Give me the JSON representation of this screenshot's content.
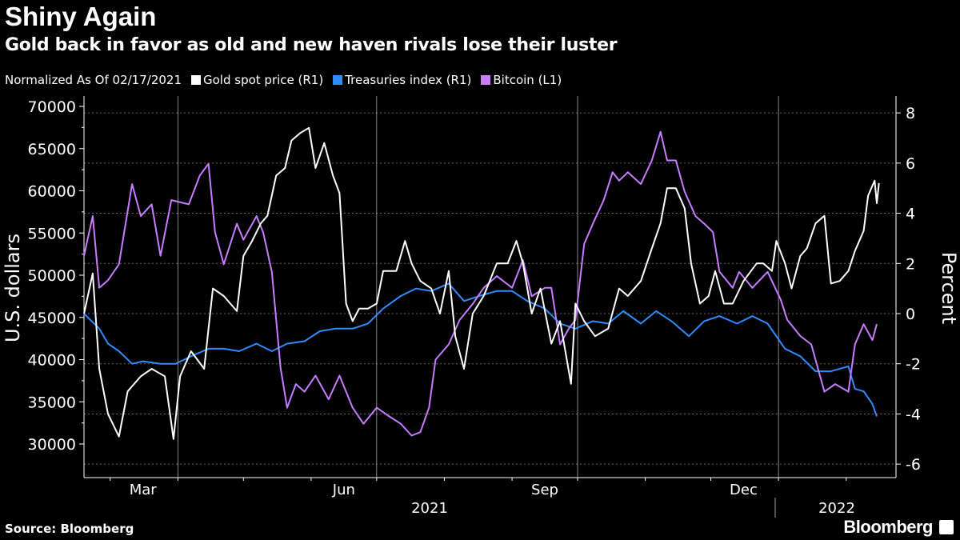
{
  "chart_data": {
    "type": "line",
    "title": "Shiny Again",
    "subtitle": "Gold back in favor as old and new haven rivals lose their luster",
    "note": "Normalized As Of 02/17/2021",
    "x_unit": "days since 2021-02-17",
    "x_tick_labels": [
      "Mar",
      "Jun",
      "Sep",
      "Dec"
    ],
    "year_labels": [
      "2021",
      "2022"
    ],
    "ylabel_left": "U.S. dollars",
    "ylabel_right": "Percent",
    "ylim_left": [
      28000,
      71000
    ],
    "ylim_right": [
      -6.5,
      8.5
    ],
    "left_ticks": [
      "70000",
      "65000",
      "60000",
      "55000",
      "50000",
      "45000",
      "40000",
      "35000",
      "30000"
    ],
    "right_ticks": [
      "8",
      "6",
      "4",
      "2",
      "0",
      "-2",
      "-4",
      "-6"
    ],
    "grid": true,
    "series": [
      {
        "name": "Gold spot price (R1)",
        "axis": "right",
        "color": "#ffffff",
        "points": [
          [
            0,
            0
          ],
          [
            4,
            1.6
          ],
          [
            7,
            -2.2
          ],
          [
            11,
            -4
          ],
          [
            16,
            -4.9
          ],
          [
            20,
            -3.1
          ],
          [
            26,
            -2.5
          ],
          [
            31,
            -2.2
          ],
          [
            37,
            -2.5
          ],
          [
            41,
            -5
          ],
          [
            44,
            -2.5
          ],
          [
            49,
            -1.5
          ],
          [
            55,
            -2.2
          ],
          [
            59,
            1
          ],
          [
            64,
            0.7
          ],
          [
            70,
            0.1
          ],
          [
            73,
            2.3
          ],
          [
            77,
            2.9
          ],
          [
            81,
            3.6
          ],
          [
            84,
            3.9
          ],
          [
            88,
            5.5
          ],
          [
            92,
            5.8
          ],
          [
            95,
            6.9
          ],
          [
            99,
            7.2
          ],
          [
            103,
            7.4
          ],
          [
            106,
            5.8
          ],
          [
            110,
            6.8
          ],
          [
            114,
            5.5
          ],
          [
            117,
            4.8
          ],
          [
            120,
            0.4
          ],
          [
            123,
            -0.3
          ],
          [
            126,
            0.2
          ],
          [
            130,
            0.2
          ],
          [
            134,
            0.4
          ],
          [
            137,
            1.7
          ],
          [
            143,
            1.7
          ],
          [
            147,
            2.9
          ],
          [
            150,
            2
          ],
          [
            154,
            1.3
          ],
          [
            159,
            1
          ],
          [
            163,
            0
          ],
          [
            167,
            1.7
          ],
          [
            170,
            -0.9
          ],
          [
            174,
            -2.2
          ],
          [
            178,
            0
          ],
          [
            183,
            0.7
          ],
          [
            189,
            2
          ],
          [
            194,
            2
          ],
          [
            198,
            2.9
          ],
          [
            201,
            2
          ],
          [
            205,
            0
          ],
          [
            209,
            1
          ],
          [
            214,
            -1.2
          ],
          [
            218,
            -0.3
          ],
          [
            223,
            -2.8
          ],
          [
            225,
            0.4
          ],
          [
            229,
            -0.3
          ],
          [
            234,
            -0.9
          ],
          [
            240,
            -0.6
          ],
          [
            245,
            1
          ],
          [
            249,
            0.7
          ],
          [
            255,
            1.3
          ],
          [
            260,
            2.6
          ],
          [
            264,
            3.6
          ],
          [
            267,
            5
          ],
          [
            271,
            5
          ],
          [
            275,
            4.2
          ],
          [
            278,
            2
          ],
          [
            282,
            0.4
          ],
          [
            286,
            0.7
          ],
          [
            289,
            1.7
          ],
          [
            293,
            0.4
          ],
          [
            297,
            0.4
          ],
          [
            302,
            1.3
          ],
          [
            308,
            2
          ],
          [
            311,
            2
          ],
          [
            315,
            1.7
          ],
          [
            317,
            2.9
          ],
          [
            321,
            2
          ],
          [
            324,
            1
          ],
          [
            328,
            2.3
          ],
          [
            331,
            2.6
          ],
          [
            335,
            3.6
          ],
          [
            339,
            3.9
          ],
          [
            342,
            1.2
          ],
          [
            346,
            1.3
          ],
          [
            350,
            1.7
          ],
          [
            353,
            2.5
          ],
          [
            357,
            3.3
          ],
          [
            359,
            4.7
          ],
          [
            362,
            5.3
          ],
          [
            363,
            4.4
          ],
          [
            364,
            5.2
          ]
        ]
      },
      {
        "name": "Treasuries index (R1)",
        "axis": "right",
        "color": "#2f8cff",
        "points": [
          [
            0,
            0
          ],
          [
            7,
            -0.6
          ],
          [
            11,
            -1.2
          ],
          [
            16,
            -1.5
          ],
          [
            22,
            -2
          ],
          [
            27,
            -1.9
          ],
          [
            35,
            -2
          ],
          [
            42,
            -2
          ],
          [
            49,
            -1.7
          ],
          [
            57,
            -1.4
          ],
          [
            64,
            -1.4
          ],
          [
            71,
            -1.5
          ],
          [
            79,
            -1.2
          ],
          [
            86,
            -1.5
          ],
          [
            93,
            -1.2
          ],
          [
            101,
            -1.1
          ],
          [
            108,
            -0.7
          ],
          [
            115,
            -0.6
          ],
          [
            123,
            -0.6
          ],
          [
            130,
            -0.4
          ],
          [
            137,
            0.2
          ],
          [
            145,
            0.7
          ],
          [
            152,
            1
          ],
          [
            159,
            0.9
          ],
          [
            167,
            1.2
          ],
          [
            174,
            0.5
          ],
          [
            181,
            0.7
          ],
          [
            189,
            0.9
          ],
          [
            196,
            0.9
          ],
          [
            203,
            0.5
          ],
          [
            211,
            0.2
          ],
          [
            218,
            -0.4
          ],
          [
            225,
            -0.6
          ],
          [
            233,
            -0.3
          ],
          [
            240,
            -0.4
          ],
          [
            247,
            0.1
          ],
          [
            255,
            -0.4
          ],
          [
            262,
            0.1
          ],
          [
            269,
            -0.3
          ],
          [
            277,
            -0.9
          ],
          [
            284,
            -0.3
          ],
          [
            291,
            -0.1
          ],
          [
            299,
            -0.4
          ],
          [
            306,
            -0.1
          ],
          [
            313,
            -0.4
          ],
          [
            321,
            -1.4
          ],
          [
            328,
            -1.7
          ],
          [
            335,
            -2.3
          ],
          [
            342,
            -2.3
          ],
          [
            350,
            -2.1
          ],
          [
            353,
            -3
          ],
          [
            357,
            -3.1
          ],
          [
            361,
            -3.6
          ],
          [
            363,
            -4.1
          ]
        ]
      },
      {
        "name": "Bitcoin (L1)",
        "axis": "left",
        "color": "#c77dff",
        "points": [
          [
            0,
            52300
          ],
          [
            4,
            57000
          ],
          [
            7,
            48500
          ],
          [
            11,
            49400
          ],
          [
            16,
            51300
          ],
          [
            22,
            60800
          ],
          [
            26,
            57000
          ],
          [
            31,
            58400
          ],
          [
            35,
            52300
          ],
          [
            40,
            58900
          ],
          [
            48,
            58400
          ],
          [
            53,
            61800
          ],
          [
            57,
            63200
          ],
          [
            60,
            55100
          ],
          [
            64,
            51300
          ],
          [
            70,
            56100
          ],
          [
            73,
            54200
          ],
          [
            79,
            57000
          ],
          [
            82,
            55100
          ],
          [
            86,
            50400
          ],
          [
            90,
            39000
          ],
          [
            93,
            34300
          ],
          [
            97,
            37100
          ],
          [
            101,
            36200
          ],
          [
            106,
            38100
          ],
          [
            112,
            35300
          ],
          [
            117,
            38100
          ],
          [
            123,
            34300
          ],
          [
            128,
            32400
          ],
          [
            134,
            34300
          ],
          [
            139,
            33400
          ],
          [
            145,
            32400
          ],
          [
            150,
            31000
          ],
          [
            154,
            31400
          ],
          [
            158,
            34300
          ],
          [
            161,
            40000
          ],
          [
            167,
            41800
          ],
          [
            172,
            44700
          ],
          [
            178,
            46600
          ],
          [
            183,
            48500
          ],
          [
            189,
            49900
          ],
          [
            196,
            48500
          ],
          [
            201,
            51800
          ],
          [
            205,
            47500
          ],
          [
            211,
            48500
          ],
          [
            214,
            48500
          ],
          [
            218,
            41800
          ],
          [
            222,
            43700
          ],
          [
            225,
            44700
          ],
          [
            229,
            53700
          ],
          [
            233,
            56100
          ],
          [
            238,
            58900
          ],
          [
            242,
            62200
          ],
          [
            245,
            61200
          ],
          [
            249,
            62200
          ],
          [
            255,
            60800
          ],
          [
            260,
            63600
          ],
          [
            264,
            67000
          ],
          [
            267,
            63600
          ],
          [
            271,
            63600
          ],
          [
            275,
            59900
          ],
          [
            280,
            57000
          ],
          [
            284,
            56100
          ],
          [
            288,
            55100
          ],
          [
            291,
            50400
          ],
          [
            297,
            48500
          ],
          [
            300,
            50400
          ],
          [
            306,
            48500
          ],
          [
            313,
            50400
          ],
          [
            319,
            47100
          ],
          [
            322,
            44700
          ],
          [
            328,
            42800
          ],
          [
            333,
            41800
          ],
          [
            339,
            36200
          ],
          [
            344,
            37100
          ],
          [
            350,
            36200
          ],
          [
            353,
            41800
          ],
          [
            357,
            44200
          ],
          [
            361,
            42300
          ],
          [
            363,
            44200
          ]
        ]
      }
    ]
  },
  "legend": {
    "note": "Normalized As Of 02/17/2021",
    "items": [
      "Gold spot price (R1)",
      "Treasuries index (R1)",
      "Bitcoin (L1)"
    ]
  },
  "source": "Source: Bloomberg",
  "brand": "Bloomberg"
}
